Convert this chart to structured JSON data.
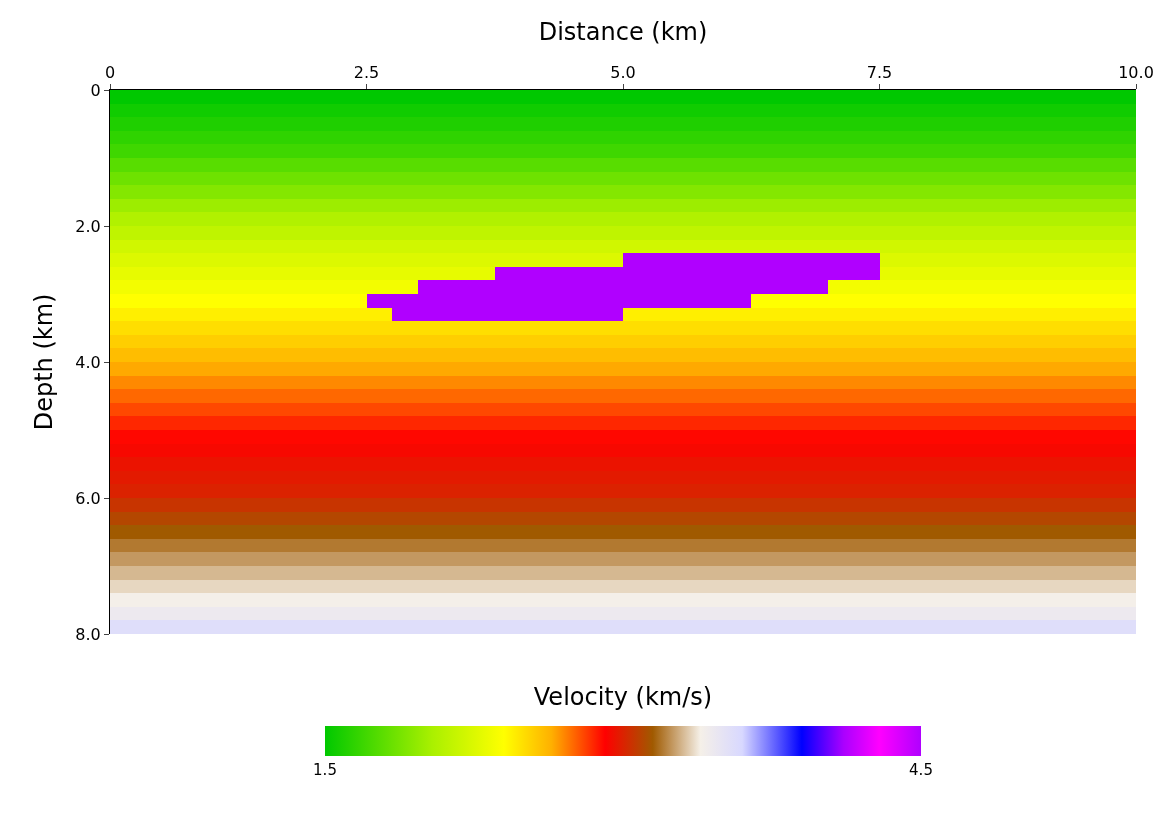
{
  "chart_data": {
    "type": "heatmap",
    "xlabel": "Distance (km)",
    "ylabel": "Depth (km)",
    "clabel": "Velocity (km/s)",
    "x": [
      0.125,
      0.375,
      0.625,
      0.875,
      1.125,
      1.375,
      1.625,
      1.875,
      2.125,
      2.375,
      2.625,
      2.875,
      3.125,
      3.375,
      3.625,
      3.875,
      4.125,
      4.375,
      4.625,
      4.875,
      5.125,
      5.375,
      5.625,
      5.875,
      6.125,
      6.375,
      6.625,
      6.875,
      7.125,
      7.375,
      7.625,
      7.875,
      8.125,
      8.375,
      8.625,
      8.875,
      9.125,
      9.375,
      9.625,
      9.875
    ],
    "y": [
      0.1,
      0.3,
      0.5,
      0.7,
      0.9,
      1.1,
      1.3,
      1.5,
      1.7,
      1.9,
      2.1,
      2.3,
      2.5,
      2.7,
      2.9,
      3.1,
      3.3,
      3.5,
      3.7,
      3.9,
      4.1,
      4.3,
      4.5,
      4.7,
      4.9,
      5.1,
      5.3,
      5.5,
      5.7,
      5.9,
      6.1,
      6.3,
      6.5,
      6.7,
      6.9,
      7.1,
      7.3,
      7.5,
      7.7,
      7.9
    ],
    "cells": [
      [
        1.5,
        1.5,
        1.5,
        1.5,
        1.5,
        1.5,
        1.5,
        1.5,
        1.5,
        1.5,
        1.5,
        1.5,
        1.5,
        1.5,
        1.5,
        1.5,
        1.5,
        1.5,
        1.5,
        1.5,
        1.5,
        1.5,
        1.5,
        1.5,
        1.5,
        1.5,
        1.5,
        1.5,
        1.5,
        1.5,
        1.5,
        1.5,
        1.5,
        1.5,
        1.5,
        1.5,
        1.5,
        1.5,
        1.5,
        1.5
      ],
      [
        1.55,
        1.55,
        1.55,
        1.55,
        1.55,
        1.55,
        1.55,
        1.55,
        1.55,
        1.55,
        1.55,
        1.55,
        1.55,
        1.55,
        1.55,
        1.55,
        1.55,
        1.55,
        1.55,
        1.55,
        1.55,
        1.55,
        1.55,
        1.55,
        1.55,
        1.55,
        1.55,
        1.55,
        1.55,
        1.55,
        1.55,
        1.55,
        1.55,
        1.55,
        1.55,
        1.55,
        1.55,
        1.55,
        1.55,
        1.55
      ],
      [
        1.6,
        1.6,
        1.6,
        1.6,
        1.6,
        1.6,
        1.6,
        1.6,
        1.6,
        1.6,
        1.6,
        1.6,
        1.6,
        1.6,
        1.6,
        1.6,
        1.6,
        1.6,
        1.6,
        1.6,
        1.6,
        1.6,
        1.6,
        1.6,
        1.6,
        1.6,
        1.6,
        1.6,
        1.6,
        1.6,
        1.6,
        1.6,
        1.6,
        1.6,
        1.6,
        1.6,
        1.6,
        1.6,
        1.6,
        1.6
      ],
      [
        1.65,
        1.65,
        1.65,
        1.65,
        1.65,
        1.65,
        1.65,
        1.65,
        1.65,
        1.65,
        1.65,
        1.65,
        1.65,
        1.65,
        1.65,
        1.65,
        1.65,
        1.65,
        1.65,
        1.65,
        1.65,
        1.65,
        1.65,
        1.65,
        1.65,
        1.65,
        1.65,
        1.65,
        1.65,
        1.65,
        1.65,
        1.65,
        1.65,
        1.65,
        1.65,
        1.65,
        1.65,
        1.65,
        1.65,
        1.65
      ],
      [
        1.7,
        1.7,
        1.7,
        1.7,
        1.7,
        1.7,
        1.7,
        1.7,
        1.7,
        1.7,
        1.7,
        1.7,
        1.7,
        1.7,
        1.7,
        1.7,
        1.7,
        1.7,
        1.7,
        1.7,
        1.7,
        1.7,
        1.7,
        1.7,
        1.7,
        1.7,
        1.7,
        1.7,
        1.7,
        1.7,
        1.7,
        1.7,
        1.7,
        1.7,
        1.7,
        1.7,
        1.7,
        1.7,
        1.7,
        1.7
      ],
      [
        1.78,
        1.78,
        1.78,
        1.78,
        1.78,
        1.78,
        1.78,
        1.78,
        1.78,
        1.78,
        1.78,
        1.78,
        1.78,
        1.78,
        1.78,
        1.78,
        1.78,
        1.78,
        1.78,
        1.78,
        1.78,
        1.78,
        1.78,
        1.78,
        1.78,
        1.78,
        1.78,
        1.78,
        1.78,
        1.78,
        1.78,
        1.78,
        1.78,
        1.78,
        1.78,
        1.78,
        1.78,
        1.78,
        1.78,
        1.78
      ],
      [
        1.85,
        1.85,
        1.85,
        1.85,
        1.85,
        1.85,
        1.85,
        1.85,
        1.85,
        1.85,
        1.85,
        1.85,
        1.85,
        1.85,
        1.85,
        1.85,
        1.85,
        1.85,
        1.85,
        1.85,
        1.85,
        1.85,
        1.85,
        1.85,
        1.85,
        1.85,
        1.85,
        1.85,
        1.85,
        1.85,
        1.85,
        1.85,
        1.85,
        1.85,
        1.85,
        1.85,
        1.85,
        1.85,
        1.85,
        1.85
      ],
      [
        1.92,
        1.92,
        1.92,
        1.92,
        1.92,
        1.92,
        1.92,
        1.92,
        1.92,
        1.92,
        1.92,
        1.92,
        1.92,
        1.92,
        1.92,
        1.92,
        1.92,
        1.92,
        1.92,
        1.92,
        1.92,
        1.92,
        1.92,
        1.92,
        1.92,
        1.92,
        1.92,
        1.92,
        1.92,
        1.92,
        1.92,
        1.92,
        1.92,
        1.92,
        1.92,
        1.92,
        1.92,
        1.92,
        1.92,
        1.92
      ],
      [
        2.0,
        2.0,
        2.0,
        2.0,
        2.0,
        2.0,
        2.0,
        2.0,
        2.0,
        2.0,
        2.0,
        2.0,
        2.0,
        2.0,
        2.0,
        2.0,
        2.0,
        2.0,
        2.0,
        2.0,
        2.0,
        2.0,
        2.0,
        2.0,
        2.0,
        2.0,
        2.0,
        2.0,
        2.0,
        2.0,
        2.0,
        2.0,
        2.0,
        2.0,
        2.0,
        2.0,
        2.0,
        2.0,
        2.0,
        2.0
      ],
      [
        2.07,
        2.07,
        2.07,
        2.07,
        2.07,
        2.07,
        2.07,
        2.07,
        2.07,
        2.07,
        2.07,
        2.07,
        2.07,
        2.07,
        2.07,
        2.07,
        2.07,
        2.07,
        2.07,
        2.07,
        2.07,
        2.07,
        2.07,
        2.07,
        2.07,
        2.07,
        2.07,
        2.07,
        2.07,
        2.07,
        2.07,
        2.07,
        2.07,
        2.07,
        2.07,
        2.07,
        2.07,
        2.07,
        2.07,
        2.07
      ],
      [
        2.13,
        2.13,
        2.13,
        2.13,
        2.13,
        2.13,
        2.13,
        2.13,
        2.13,
        2.13,
        2.13,
        2.13,
        2.13,
        2.13,
        2.13,
        2.13,
        2.13,
        2.13,
        2.13,
        2.13,
        2.13,
        2.13,
        2.13,
        2.13,
        2.13,
        2.13,
        2.13,
        2.13,
        2.13,
        2.13,
        2.13,
        2.13,
        2.13,
        2.13,
        2.13,
        2.13,
        2.13,
        2.13,
        2.13,
        2.13
      ],
      [
        2.2,
        2.2,
        2.2,
        2.2,
        2.2,
        2.2,
        2.2,
        2.2,
        2.2,
        2.2,
        2.2,
        2.2,
        2.2,
        2.2,
        2.2,
        2.2,
        2.2,
        2.2,
        2.2,
        2.2,
        2.2,
        2.2,
        2.2,
        2.2,
        2.2,
        2.2,
        2.2,
        2.2,
        2.2,
        2.2,
        2.2,
        2.2,
        2.2,
        2.2,
        2.2,
        2.2,
        2.2,
        2.2,
        2.2,
        2.2
      ],
      [
        2.25,
        2.25,
        2.25,
        2.25,
        2.25,
        2.25,
        2.25,
        2.25,
        2.25,
        2.25,
        2.25,
        2.25,
        2.25,
        2.25,
        2.25,
        2.25,
        2.25,
        2.25,
        2.25,
        2.25,
        4.5,
        4.5,
        4.5,
        4.5,
        4.5,
        4.5,
        4.5,
        4.5,
        4.5,
        4.5,
        2.25,
        2.25,
        2.25,
        2.25,
        2.25,
        2.25,
        2.25,
        2.25,
        2.25,
        2.25
      ],
      [
        2.3,
        2.3,
        2.3,
        2.3,
        2.3,
        2.3,
        2.3,
        2.3,
        2.3,
        2.3,
        2.3,
        2.3,
        2.3,
        2.3,
        2.3,
        4.5,
        4.5,
        4.5,
        4.5,
        4.5,
        4.5,
        4.5,
        4.5,
        4.5,
        4.5,
        4.5,
        4.5,
        4.5,
        4.5,
        4.5,
        2.3,
        2.3,
        2.3,
        2.3,
        2.3,
        2.3,
        2.3,
        2.3,
        2.3,
        2.3
      ],
      [
        2.35,
        2.35,
        2.35,
        2.35,
        2.35,
        2.35,
        2.35,
        2.35,
        2.35,
        2.35,
        2.35,
        2.35,
        4.5,
        4.5,
        4.5,
        4.5,
        4.5,
        4.5,
        4.5,
        4.5,
        4.5,
        4.5,
        4.5,
        4.5,
        4.5,
        4.5,
        4.5,
        4.5,
        2.35,
        2.35,
        2.35,
        2.35,
        2.35,
        2.35,
        2.35,
        2.35,
        2.35,
        2.35,
        2.35,
        2.35
      ],
      [
        2.4,
        2.4,
        2.4,
        2.4,
        2.4,
        2.4,
        2.4,
        2.4,
        2.4,
        2.4,
        4.5,
        4.5,
        4.5,
        4.5,
        4.5,
        4.5,
        4.5,
        4.5,
        4.5,
        4.5,
        4.5,
        4.5,
        4.5,
        4.5,
        4.5,
        2.4,
        2.4,
        2.4,
        2.4,
        2.4,
        2.4,
        2.4,
        2.4,
        2.4,
        2.4,
        2.4,
        2.4,
        2.4,
        2.4,
        2.4
      ],
      [
        2.45,
        2.45,
        2.45,
        2.45,
        2.45,
        2.45,
        2.45,
        2.45,
        2.45,
        2.45,
        2.45,
        4.5,
        4.5,
        4.5,
        4.5,
        4.5,
        4.5,
        4.5,
        4.5,
        4.5,
        2.45,
        2.45,
        2.45,
        2.45,
        2.45,
        2.45,
        2.45,
        2.45,
        2.45,
        2.45,
        2.45,
        2.45,
        2.45,
        2.45,
        2.45,
        2.45,
        2.45,
        2.45,
        2.45,
        2.45
      ],
      [
        2.5,
        2.5,
        2.5,
        2.5,
        2.5,
        2.5,
        2.5,
        2.5,
        2.5,
        2.5,
        2.5,
        2.5,
        2.5,
        2.5,
        2.5,
        2.5,
        2.5,
        2.5,
        2.5,
        2.5,
        2.5,
        2.5,
        2.5,
        2.5,
        2.5,
        2.5,
        2.5,
        2.5,
        2.5,
        2.5,
        2.5,
        2.5,
        2.5,
        2.5,
        2.5,
        2.5,
        2.5,
        2.5,
        2.5,
        2.5
      ],
      [
        2.55,
        2.55,
        2.55,
        2.55,
        2.55,
        2.55,
        2.55,
        2.55,
        2.55,
        2.55,
        2.55,
        2.55,
        2.55,
        2.55,
        2.55,
        2.55,
        2.55,
        2.55,
        2.55,
        2.55,
        2.55,
        2.55,
        2.55,
        2.55,
        2.55,
        2.55,
        2.55,
        2.55,
        2.55,
        2.55,
        2.55,
        2.55,
        2.55,
        2.55,
        2.55,
        2.55,
        2.55,
        2.55,
        2.55,
        2.55
      ],
      [
        2.6,
        2.6,
        2.6,
        2.6,
        2.6,
        2.6,
        2.6,
        2.6,
        2.6,
        2.6,
        2.6,
        2.6,
        2.6,
        2.6,
        2.6,
        2.6,
        2.6,
        2.6,
        2.6,
        2.6,
        2.6,
        2.6,
        2.6,
        2.6,
        2.6,
        2.6,
        2.6,
        2.6,
        2.6,
        2.6,
        2.6,
        2.6,
        2.6,
        2.6,
        2.6,
        2.6,
        2.6,
        2.6,
        2.6,
        2.6
      ],
      [
        2.65,
        2.65,
        2.65,
        2.65,
        2.65,
        2.65,
        2.65,
        2.65,
        2.65,
        2.65,
        2.65,
        2.65,
        2.65,
        2.65,
        2.65,
        2.65,
        2.65,
        2.65,
        2.65,
        2.65,
        2.65,
        2.65,
        2.65,
        2.65,
        2.65,
        2.65,
        2.65,
        2.65,
        2.65,
        2.65,
        2.65,
        2.65,
        2.65,
        2.65,
        2.65,
        2.65,
        2.65,
        2.65,
        2.65,
        2.65
      ],
      [
        2.7,
        2.7,
        2.7,
        2.7,
        2.7,
        2.7,
        2.7,
        2.7,
        2.7,
        2.7,
        2.7,
        2.7,
        2.7,
        2.7,
        2.7,
        2.7,
        2.7,
        2.7,
        2.7,
        2.7,
        2.7,
        2.7,
        2.7,
        2.7,
        2.7,
        2.7,
        2.7,
        2.7,
        2.7,
        2.7,
        2.7,
        2.7,
        2.7,
        2.7,
        2.7,
        2.7,
        2.7,
        2.7,
        2.7,
        2.7
      ],
      [
        2.75,
        2.75,
        2.75,
        2.75,
        2.75,
        2.75,
        2.75,
        2.75,
        2.75,
        2.75,
        2.75,
        2.75,
        2.75,
        2.75,
        2.75,
        2.75,
        2.75,
        2.75,
        2.75,
        2.75,
        2.75,
        2.75,
        2.75,
        2.75,
        2.75,
        2.75,
        2.75,
        2.75,
        2.75,
        2.75,
        2.75,
        2.75,
        2.75,
        2.75,
        2.75,
        2.75,
        2.75,
        2.75,
        2.75,
        2.75
      ],
      [
        2.8,
        2.8,
        2.8,
        2.8,
        2.8,
        2.8,
        2.8,
        2.8,
        2.8,
        2.8,
        2.8,
        2.8,
        2.8,
        2.8,
        2.8,
        2.8,
        2.8,
        2.8,
        2.8,
        2.8,
        2.8,
        2.8,
        2.8,
        2.8,
        2.8,
        2.8,
        2.8,
        2.8,
        2.8,
        2.8,
        2.8,
        2.8,
        2.8,
        2.8,
        2.8,
        2.8,
        2.8,
        2.8,
        2.8,
        2.8
      ],
      [
        2.85,
        2.85,
        2.85,
        2.85,
        2.85,
        2.85,
        2.85,
        2.85,
        2.85,
        2.85,
        2.85,
        2.85,
        2.85,
        2.85,
        2.85,
        2.85,
        2.85,
        2.85,
        2.85,
        2.85,
        2.85,
        2.85,
        2.85,
        2.85,
        2.85,
        2.85,
        2.85,
        2.85,
        2.85,
        2.85,
        2.85,
        2.85,
        2.85,
        2.85,
        2.85,
        2.85,
        2.85,
        2.85,
        2.85,
        2.85
      ],
      [
        2.9,
        2.9,
        2.9,
        2.9,
        2.9,
        2.9,
        2.9,
        2.9,
        2.9,
        2.9,
        2.9,
        2.9,
        2.9,
        2.9,
        2.9,
        2.9,
        2.9,
        2.9,
        2.9,
        2.9,
        2.9,
        2.9,
        2.9,
        2.9,
        2.9,
        2.9,
        2.9,
        2.9,
        2.9,
        2.9,
        2.9,
        2.9,
        2.9,
        2.9,
        2.9,
        2.9,
        2.9,
        2.9,
        2.9,
        2.9
      ],
      [
        2.93,
        2.93,
        2.93,
        2.93,
        2.93,
        2.93,
        2.93,
        2.93,
        2.93,
        2.93,
        2.93,
        2.93,
        2.93,
        2.93,
        2.93,
        2.93,
        2.93,
        2.93,
        2.93,
        2.93,
        2.93,
        2.93,
        2.93,
        2.93,
        2.93,
        2.93,
        2.93,
        2.93,
        2.93,
        2.93,
        2.93,
        2.93,
        2.93,
        2.93,
        2.93,
        2.93,
        2.93,
        2.93,
        2.93,
        2.93
      ],
      [
        2.96,
        2.96,
        2.96,
        2.96,
        2.96,
        2.96,
        2.96,
        2.96,
        2.96,
        2.96,
        2.96,
        2.96,
        2.96,
        2.96,
        2.96,
        2.96,
        2.96,
        2.96,
        2.96,
        2.96,
        2.96,
        2.96,
        2.96,
        2.96,
        2.96,
        2.96,
        2.96,
        2.96,
        2.96,
        2.96,
        2.96,
        2.96,
        2.96,
        2.96,
        2.96,
        2.96,
        2.96,
        2.96,
        2.96,
        2.96
      ],
      [
        2.98,
        2.98,
        2.98,
        2.98,
        2.98,
        2.98,
        2.98,
        2.98,
        2.98,
        2.98,
        2.98,
        2.98,
        2.98,
        2.98,
        2.98,
        2.98,
        2.98,
        2.98,
        2.98,
        2.98,
        2.98,
        2.98,
        2.98,
        2.98,
        2.98,
        2.98,
        2.98,
        2.98,
        2.98,
        2.98,
        2.98,
        2.98,
        2.98,
        2.98,
        2.98,
        2.98,
        2.98,
        2.98,
        2.98,
        2.98
      ],
      [
        3.0,
        3.0,
        3.0,
        3.0,
        3.0,
        3.0,
        3.0,
        3.0,
        3.0,
        3.0,
        3.0,
        3.0,
        3.0,
        3.0,
        3.0,
        3.0,
        3.0,
        3.0,
        3.0,
        3.0,
        3.0,
        3.0,
        3.0,
        3.0,
        3.0,
        3.0,
        3.0,
        3.0,
        3.0,
        3.0,
        3.0,
        3.0,
        3.0,
        3.0,
        3.0,
        3.0,
        3.0,
        3.0,
        3.0,
        3.0
      ],
      [
        3.05,
        3.05,
        3.05,
        3.05,
        3.05,
        3.05,
        3.05,
        3.05,
        3.05,
        3.05,
        3.05,
        3.05,
        3.05,
        3.05,
        3.05,
        3.05,
        3.05,
        3.05,
        3.05,
        3.05,
        3.05,
        3.05,
        3.05,
        3.05,
        3.05,
        3.05,
        3.05,
        3.05,
        3.05,
        3.05,
        3.05,
        3.05,
        3.05,
        3.05,
        3.05,
        3.05,
        3.05,
        3.05,
        3.05,
        3.05
      ],
      [
        3.1,
        3.1,
        3.1,
        3.1,
        3.1,
        3.1,
        3.1,
        3.1,
        3.1,
        3.1,
        3.1,
        3.1,
        3.1,
        3.1,
        3.1,
        3.1,
        3.1,
        3.1,
        3.1,
        3.1,
        3.1,
        3.1,
        3.1,
        3.1,
        3.1,
        3.1,
        3.1,
        3.1,
        3.1,
        3.1,
        3.1,
        3.1,
        3.1,
        3.1,
        3.1,
        3.1,
        3.1,
        3.1,
        3.1,
        3.1
      ],
      [
        3.15,
        3.15,
        3.15,
        3.15,
        3.15,
        3.15,
        3.15,
        3.15,
        3.15,
        3.15,
        3.15,
        3.15,
        3.15,
        3.15,
        3.15,
        3.15,
        3.15,
        3.15,
        3.15,
        3.15,
        3.15,
        3.15,
        3.15,
        3.15,
        3.15,
        3.15,
        3.15,
        3.15,
        3.15,
        3.15,
        3.15,
        3.15,
        3.15,
        3.15,
        3.15,
        3.15,
        3.15,
        3.15,
        3.15,
        3.15
      ],
      [
        3.2,
        3.2,
        3.2,
        3.2,
        3.2,
        3.2,
        3.2,
        3.2,
        3.2,
        3.2,
        3.2,
        3.2,
        3.2,
        3.2,
        3.2,
        3.2,
        3.2,
        3.2,
        3.2,
        3.2,
        3.2,
        3.2,
        3.2,
        3.2,
        3.2,
        3.2,
        3.2,
        3.2,
        3.2,
        3.2,
        3.2,
        3.2,
        3.2,
        3.2,
        3.2,
        3.2,
        3.2,
        3.2,
        3.2,
        3.2
      ],
      [
        3.25,
        3.25,
        3.25,
        3.25,
        3.25,
        3.25,
        3.25,
        3.25,
        3.25,
        3.25,
        3.25,
        3.25,
        3.25,
        3.25,
        3.25,
        3.25,
        3.25,
        3.25,
        3.25,
        3.25,
        3.25,
        3.25,
        3.25,
        3.25,
        3.25,
        3.25,
        3.25,
        3.25,
        3.25,
        3.25,
        3.25,
        3.25,
        3.25,
        3.25,
        3.25,
        3.25,
        3.25,
        3.25,
        3.25,
        3.25
      ],
      [
        3.3,
        3.3,
        3.3,
        3.3,
        3.3,
        3.3,
        3.3,
        3.3,
        3.3,
        3.3,
        3.3,
        3.3,
        3.3,
        3.3,
        3.3,
        3.3,
        3.3,
        3.3,
        3.3,
        3.3,
        3.3,
        3.3,
        3.3,
        3.3,
        3.3,
        3.3,
        3.3,
        3.3,
        3.3,
        3.3,
        3.3,
        3.3,
        3.3,
        3.3,
        3.3,
        3.3,
        3.3,
        3.3,
        3.3,
        3.3
      ],
      [
        3.35,
        3.35,
        3.35,
        3.35,
        3.35,
        3.35,
        3.35,
        3.35,
        3.35,
        3.35,
        3.35,
        3.35,
        3.35,
        3.35,
        3.35,
        3.35,
        3.35,
        3.35,
        3.35,
        3.35,
        3.35,
        3.35,
        3.35,
        3.35,
        3.35,
        3.35,
        3.35,
        3.35,
        3.35,
        3.35,
        3.35,
        3.35,
        3.35,
        3.35,
        3.35,
        3.35,
        3.35,
        3.35,
        3.35,
        3.35
      ],
      [
        3.4,
        3.4,
        3.4,
        3.4,
        3.4,
        3.4,
        3.4,
        3.4,
        3.4,
        3.4,
        3.4,
        3.4,
        3.4,
        3.4,
        3.4,
        3.4,
        3.4,
        3.4,
        3.4,
        3.4,
        3.4,
        3.4,
        3.4,
        3.4,
        3.4,
        3.4,
        3.4,
        3.4,
        3.4,
        3.4,
        3.4,
        3.4,
        3.4,
        3.4,
        3.4,
        3.4,
        3.4,
        3.4,
        3.4,
        3.4
      ],
      [
        3.45,
        3.45,
        3.45,
        3.45,
        3.45,
        3.45,
        3.45,
        3.45,
        3.45,
        3.45,
        3.45,
        3.45,
        3.45,
        3.45,
        3.45,
        3.45,
        3.45,
        3.45,
        3.45,
        3.45,
        3.45,
        3.45,
        3.45,
        3.45,
        3.45,
        3.45,
        3.45,
        3.45,
        3.45,
        3.45,
        3.45,
        3.45,
        3.45,
        3.45,
        3.45,
        3.45,
        3.45,
        3.45,
        3.45,
        3.45
      ],
      [
        3.55,
        3.55,
        3.55,
        3.55,
        3.55,
        3.55,
        3.55,
        3.55,
        3.55,
        3.55,
        3.55,
        3.55,
        3.55,
        3.55,
        3.55,
        3.55,
        3.55,
        3.55,
        3.55,
        3.55,
        3.55,
        3.55,
        3.55,
        3.55,
        3.55,
        3.55,
        3.55,
        3.55,
        3.55,
        3.55,
        3.55,
        3.55,
        3.55,
        3.55,
        3.55,
        3.55,
        3.55,
        3.55,
        3.55,
        3.55
      ]
    ],
    "xlim": [
      0,
      10
    ],
    "xticks": [
      {
        "value": 0,
        "label": "0"
      },
      {
        "value": 2.5,
        "label": "2.5"
      },
      {
        "value": 5,
        "label": "5.0"
      },
      {
        "value": 7.5,
        "label": "7.5"
      },
      {
        "value": 10,
        "label": "10.0"
      }
    ],
    "ylim": [
      8,
      0
    ],
    "yticks": [
      {
        "value": 0,
        "label": "0"
      },
      {
        "value": 2,
        "label": "2.0"
      },
      {
        "value": 4,
        "label": "4.0"
      },
      {
        "value": 6,
        "label": "6.0"
      },
      {
        "value": 8,
        "label": "8.0"
      }
    ],
    "clim": [
      1.5,
      4.5
    ],
    "cticks": [
      {
        "value": 1.5,
        "label": "1.5"
      },
      {
        "value": 4.5,
        "label": "4.5"
      }
    ]
  }
}
